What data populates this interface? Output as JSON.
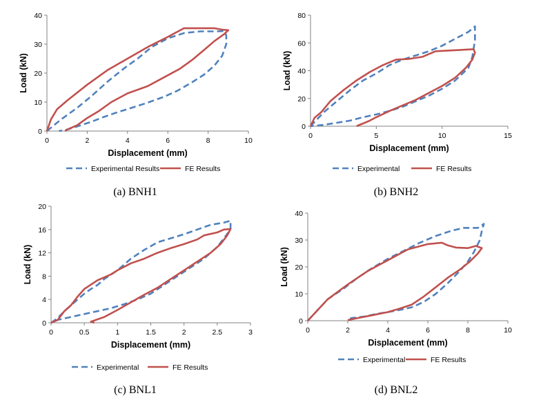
{
  "colors": {
    "experimental": "#4F81BD",
    "fe": "#C0504D"
  },
  "chart_data": [
    {
      "type": "line",
      "caption": "(a)   BNH1",
      "xlabel": "Displacement (mm)",
      "ylabel": "Load (kN)",
      "xlim": [
        0,
        10
      ],
      "ylim": [
        0,
        40
      ],
      "xticks": [
        "0",
        "2",
        "4",
        "6",
        "8",
        "10"
      ],
      "yticks": [
        "0",
        "10",
        "20",
        "30",
        "40"
      ],
      "xtick_values": [
        0,
        2,
        4,
        6,
        8,
        10
      ],
      "ytick_values": [
        0,
        10,
        20,
        30,
        40
      ],
      "series": [
        {
          "name": "Experimental Results",
          "style": "dashed",
          "points": [
            [
              0,
              0
            ],
            [
              0.7,
              4
            ],
            [
              1.5,
              8
            ],
            [
              2.2,
              12
            ],
            [
              3,
              17
            ],
            [
              3.8,
              21.5
            ],
            [
              4.5,
              25
            ],
            [
              5.2,
              29
            ],
            [
              6,
              32
            ],
            [
              6.8,
              33.8
            ],
            [
              7.6,
              34.4
            ],
            [
              8.3,
              34.4
            ],
            [
              8.8,
              34.5
            ],
            [
              8.9,
              33
            ],
            [
              8.9,
              30
            ],
            [
              8.7,
              26
            ],
            [
              8.3,
              22.5
            ],
            [
              7.8,
              19.5
            ],
            [
              7.2,
              16.8
            ],
            [
              6.5,
              14
            ],
            [
              5.8,
              11.8
            ],
            [
              5,
              9.8
            ],
            [
              4.2,
              8
            ],
            [
              3.5,
              6.5
            ],
            [
              2.8,
              4.8
            ],
            [
              2.2,
              3.2
            ],
            [
              1.6,
              1.8
            ],
            [
              1,
              0.5
            ],
            [
              0.6,
              0
            ]
          ]
        },
        {
          "name": "FE Results",
          "style": "solid",
          "points": [
            [
              0,
              0
            ],
            [
              0.2,
              4
            ],
            [
              0.5,
              7.5
            ],
            [
              1,
              10.5
            ],
            [
              2,
              16
            ],
            [
              3,
              21
            ],
            [
              4,
              25
            ],
            [
              5,
              29
            ],
            [
              6,
              32.5
            ],
            [
              6.8,
              35.5
            ],
            [
              7.5,
              35.5
            ],
            [
              8.3,
              35.5
            ],
            [
              8.7,
              35
            ],
            [
              9,
              34.8
            ],
            [
              8.8,
              33.5
            ],
            [
              8.3,
              31
            ],
            [
              7.8,
              28
            ],
            [
              7.2,
              24.5
            ],
            [
              6.6,
              21.5
            ],
            [
              5.8,
              18.5
            ],
            [
              5,
              15.5
            ],
            [
              4,
              13
            ],
            [
              3.2,
              10
            ],
            [
              2.6,
              7
            ],
            [
              2,
              4.5
            ],
            [
              1.5,
              2
            ],
            [
              1,
              0.5
            ],
            [
              0.9,
              0
            ]
          ]
        }
      ],
      "legend": [
        "Experimental Results",
        "FE Results"
      ],
      "legend_position": "bottom"
    },
    {
      "type": "line",
      "caption": "(b)   BNH2",
      "xlabel": "Displacement (mm)",
      "ylabel": "Load (kN)",
      "xlim": [
        0,
        15
      ],
      "ylim": [
        0,
        80
      ],
      "xticks": [
        "0",
        "5",
        "10",
        "15"
      ],
      "yticks": [
        "0",
        "20",
        "40",
        "60",
        "80"
      ],
      "xtick_values": [
        0,
        5,
        10,
        15
      ],
      "ytick_values": [
        0,
        20,
        40,
        60,
        80
      ],
      "series": [
        {
          "name": "Experimental",
          "style": "dashed",
          "points": [
            [
              0,
              0
            ],
            [
              1,
              10
            ],
            [
              2,
              18
            ],
            [
              3,
              26
            ],
            [
              4,
              33
            ],
            [
              5,
              38
            ],
            [
              6,
              44
            ],
            [
              7,
              48
            ],
            [
              8,
              51
            ],
            [
              9,
              54
            ],
            [
              10,
              58
            ],
            [
              11,
              63
            ],
            [
              12,
              68
            ],
            [
              12.4,
              71
            ],
            [
              12.5,
              72
            ],
            [
              12.5,
              62
            ],
            [
              12.3,
              50
            ],
            [
              12,
              42
            ],
            [
              11,
              33
            ],
            [
              10,
              27
            ],
            [
              9,
              22
            ],
            [
              8,
              18
            ],
            [
              7,
              14
            ],
            [
              6,
              11
            ],
            [
              5,
              8.5
            ],
            [
              4,
              6.5
            ],
            [
              3,
              4
            ],
            [
              2,
              2.5
            ],
            [
              1,
              1
            ],
            [
              0,
              0
            ]
          ]
        },
        {
          "name": "FE Results",
          "style": "solid",
          "points": [
            [
              0,
              0
            ],
            [
              0.3,
              6
            ],
            [
              0.8,
              10
            ],
            [
              1.5,
              18
            ],
            [
              2.5,
              26
            ],
            [
              3.5,
              33
            ],
            [
              4.5,
              39
            ],
            [
              5.5,
              44
            ],
            [
              6.5,
              48
            ],
            [
              7.5,
              48.5
            ],
            [
              8.5,
              50
            ],
            [
              9.5,
              54
            ],
            [
              10.5,
              54.5
            ],
            [
              11.5,
              55
            ],
            [
              12.4,
              55.5
            ],
            [
              12.5,
              53
            ],
            [
              12.3,
              48
            ],
            [
              11.8,
              42
            ],
            [
              11,
              35
            ],
            [
              10,
              29
            ],
            [
              9,
              24
            ],
            [
              8,
              19
            ],
            [
              7,
              15
            ],
            [
              6,
              11
            ],
            [
              5,
              6.5
            ],
            [
              4.5,
              4
            ],
            [
              4,
              2
            ],
            [
              3.6,
              0.5
            ],
            [
              3.5,
              0
            ]
          ]
        }
      ],
      "legend": [
        "Experimental",
        "FE Results"
      ],
      "legend_position": "bottom"
    },
    {
      "type": "line",
      "caption": "(c)   BNL1",
      "xlabel": "Displacement (mm)",
      "ylabel": "Load (kN)",
      "xlim": [
        0,
        3
      ],
      "ylim": [
        0,
        20
      ],
      "xticks": [
        "0",
        "0.5",
        "1",
        "1.5",
        "2",
        "2.5",
        "3"
      ],
      "yticks": [
        "0",
        "4",
        "8",
        "12",
        "16",
        "20"
      ],
      "xtick_values": [
        0,
        0.5,
        1,
        1.5,
        2,
        2.5,
        3
      ],
      "ytick_values": [
        0,
        4,
        8,
        12,
        16,
        20
      ],
      "series": [
        {
          "name": "Experimental",
          "style": "dashed",
          "points": [
            [
              0,
              0
            ],
            [
              0.1,
              0.8
            ],
            [
              0.2,
              2
            ],
            [
              0.3,
              3
            ],
            [
              0.4,
              4
            ],
            [
              0.5,
              5
            ],
            [
              0.6,
              5.8
            ],
            [
              0.7,
              6.5
            ],
            [
              0.8,
              7.5
            ],
            [
              1,
              9
            ],
            [
              1.1,
              10
            ],
            [
              1.2,
              11
            ],
            [
              1.4,
              12.5
            ],
            [
              1.6,
              13.8
            ],
            [
              1.8,
              14.5
            ],
            [
              2,
              15.2
            ],
            [
              2.2,
              16
            ],
            [
              2.4,
              16.8
            ],
            [
              2.6,
              17.2
            ],
            [
              2.7,
              17.5
            ],
            [
              2.7,
              16
            ],
            [
              2.6,
              14.5
            ],
            [
              2.5,
              13
            ],
            [
              2.3,
              11
            ],
            [
              2.1,
              9.5
            ],
            [
              1.9,
              8
            ],
            [
              1.7,
              6.5
            ],
            [
              1.5,
              5
            ],
            [
              1.3,
              4
            ],
            [
              1.1,
              3.2
            ],
            [
              0.9,
              2.5
            ],
            [
              0.7,
              2
            ],
            [
              0.5,
              1.5
            ],
            [
              0.3,
              1
            ],
            [
              0.1,
              0.5
            ],
            [
              0,
              0
            ]
          ]
        },
        {
          "name": "FE Results",
          "style": "solid",
          "points": [
            [
              0,
              0
            ],
            [
              0.1,
              0.5
            ],
            [
              0.2,
              2
            ],
            [
              0.3,
              3
            ],
            [
              0.4,
              4.5
            ],
            [
              0.5,
              5.8
            ],
            [
              0.7,
              7.3
            ],
            [
              0.9,
              8.3
            ],
            [
              1,
              9
            ],
            [
              1.2,
              10.2
            ],
            [
              1.4,
              11
            ],
            [
              1.6,
              12
            ],
            [
              1.8,
              12.8
            ],
            [
              2,
              13.5
            ],
            [
              2.2,
              14.3
            ],
            [
              2.3,
              15
            ],
            [
              2.5,
              15.5
            ],
            [
              2.6,
              16
            ],
            [
              2.7,
              16.1
            ],
            [
              2.65,
              15
            ],
            [
              2.55,
              13.5
            ],
            [
              2.4,
              12
            ],
            [
              2.2,
              10.5
            ],
            [
              2,
              9
            ],
            [
              1.8,
              7.5
            ],
            [
              1.6,
              6
            ],
            [
              1.4,
              4.8
            ],
            [
              1.2,
              3.5
            ],
            [
              1,
              2.2
            ],
            [
              0.8,
              1
            ],
            [
              0.6,
              0.2
            ],
            [
              0.65,
              0
            ]
          ]
        }
      ],
      "legend": [
        "Experimental",
        "FE Results"
      ],
      "legend_position": "bottom"
    },
    {
      "type": "line",
      "caption": "(d)   BNL2",
      "xlabel": "Displacement (mm)",
      "ylabel": "Load (kN)",
      "xlim": [
        0,
        10
      ],
      "ylim": [
        0,
        40
      ],
      "xticks": [
        "0",
        "2",
        "4",
        "6",
        "8",
        "10"
      ],
      "yticks": [
        "0",
        "10",
        "20",
        "30",
        "40"
      ],
      "xtick_values": [
        0,
        2,
        4,
        6,
        8,
        10
      ],
      "ytick_values": [
        0,
        10,
        20,
        30,
        40
      ],
      "series": [
        {
          "name": "Experimental",
          "style": "dashed",
          "points": [
            [
              0,
              0
            ],
            [
              0.5,
              4
            ],
            [
              1,
              8
            ],
            [
              1.8,
              12
            ],
            [
              2.5,
              16
            ],
            [
              3.2,
              19.5
            ],
            [
              4,
              23
            ],
            [
              4.8,
              26
            ],
            [
              5.6,
              29
            ],
            [
              6.4,
              31.5
            ],
            [
              7.2,
              33.5
            ],
            [
              7.8,
              34.5
            ],
            [
              8.5,
              34.5
            ],
            [
              8.8,
              36
            ],
            [
              8.7,
              33.5
            ],
            [
              8.6,
              30
            ],
            [
              8.3,
              25.5
            ],
            [
              8,
              22
            ],
            [
              7.6,
              18.5
            ],
            [
              7,
              14
            ],
            [
              6.4,
              10
            ],
            [
              5.8,
              7
            ],
            [
              5.2,
              5
            ],
            [
              4.6,
              4
            ],
            [
              4,
              3.2
            ],
            [
              3.4,
              2.5
            ],
            [
              2.8,
              1.5
            ],
            [
              2.2,
              1
            ],
            [
              2,
              0.5
            ]
          ]
        },
        {
          "name": "FE Results",
          "style": "solid",
          "points": [
            [
              0,
              0
            ],
            [
              0.5,
              4
            ],
            [
              1,
              8
            ],
            [
              2,
              13.5
            ],
            [
              3,
              18.5
            ],
            [
              4,
              22.5
            ],
            [
              5,
              26.5
            ],
            [
              6,
              28.5
            ],
            [
              6.7,
              29
            ],
            [
              7,
              28
            ],
            [
              7.4,
              27.2
            ],
            [
              8,
              27
            ],
            [
              8.4,
              27.8
            ],
            [
              8.7,
              27
            ],
            [
              8.5,
              25
            ],
            [
              8.1,
              22
            ],
            [
              7.6,
              19
            ],
            [
              7,
              16
            ],
            [
              6.4,
              12.5
            ],
            [
              5.8,
              9
            ],
            [
              5.2,
              6
            ],
            [
              4.6,
              4.5
            ],
            [
              4,
              3.2
            ],
            [
              3.2,
              2
            ],
            [
              2.5,
              1
            ],
            [
              2,
              0.2
            ]
          ]
        }
      ],
      "legend": [
        "Experimental",
        "FE Results"
      ],
      "legend_position": "bottom"
    }
  ]
}
